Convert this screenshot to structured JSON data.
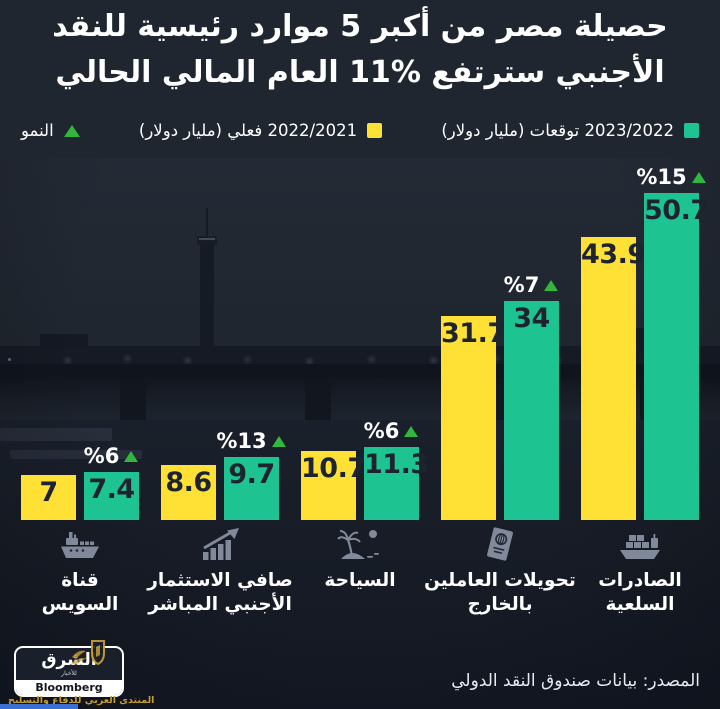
{
  "title": "حصيلة مصر من أكبر 5 موارد رئيسية للنقد الأجنبي سترتفع %11 العام المالي الحالي",
  "legend": {
    "forecast": {
      "label": "2023/2022 توقعات (مليار دولار)",
      "color": "#1EC392",
      "swatch": "square"
    },
    "actual": {
      "label": "2022/2021 فعلي (مليار دولار)",
      "color": "#FFE135",
      "swatch": "square"
    },
    "growth": {
      "label": "النمو",
      "color": "#30B73C",
      "swatch": "triangle-up"
    }
  },
  "chart_data": {
    "type": "bar",
    "direction": "rtl",
    "unit": "مليار دولار",
    "ylim": [
      0,
      55
    ],
    "grid": false,
    "categories": [
      "الصادرات السلعية",
      "تحويلات العاملين بالخارج",
      "السياحة",
      "صافي الاستثمار الأجنبي المباشر",
      "قناة السويس"
    ],
    "series": [
      {
        "name": "2022/2021 فعلي (مليار دولار)",
        "color": "#FFE135",
        "values": [
          43.9,
          31.7,
          10.7,
          8.6,
          7
        ]
      },
      {
        "name": "2023/2022 توقعات (مليار دولار)",
        "color": "#1EC392",
        "values": [
          50.7,
          34,
          11.3,
          9.7,
          7.4
        ]
      }
    ],
    "growth_labels": [
      "%15",
      "%7",
      "%6",
      "%13",
      "%6"
    ]
  },
  "groups": [
    {
      "icon": "cargo-ship-icon",
      "label_lines": [
        "الصادرات",
        "السلعية"
      ],
      "actual_display": "43.9",
      "forecast_display": "50.7",
      "growth": "%15"
    },
    {
      "icon": "passport-icon",
      "label_lines": [
        "تحويلات العاملين",
        "بالخارج"
      ],
      "actual_display": "31.7",
      "forecast_display": "34",
      "growth": "%7"
    },
    {
      "icon": "beach-icon",
      "label_lines": [
        "السياحة"
      ],
      "actual_display": "10.7",
      "forecast_display": "11.3",
      "growth": "%6"
    },
    {
      "icon": "investment-chart-icon",
      "label_lines": [
        "صافي الاستثمار",
        "الأجنبي المباشر"
      ],
      "actual_display": "8.6",
      "forecast_display": "9.7",
      "growth": "%13"
    },
    {
      "icon": "ship-icon",
      "label_lines": [
        "قناة",
        "السويس"
      ],
      "actual_display": "7",
      "forecast_display": "7.4",
      "growth": "%6"
    }
  ],
  "source": "المصدر: بيانات صندوق النقد الدولي",
  "logo": {
    "name": "الشرق",
    "subtitle": "للأخبار",
    "partner": "Bloomberg"
  },
  "watermark": {
    "text": "المنتدى العربي للدفاع والتسليح"
  },
  "colors": {
    "background": "#20262F",
    "bar_value_text": "#1D2430",
    "text": "#FFFFFF",
    "icon": "#8A93A4"
  }
}
